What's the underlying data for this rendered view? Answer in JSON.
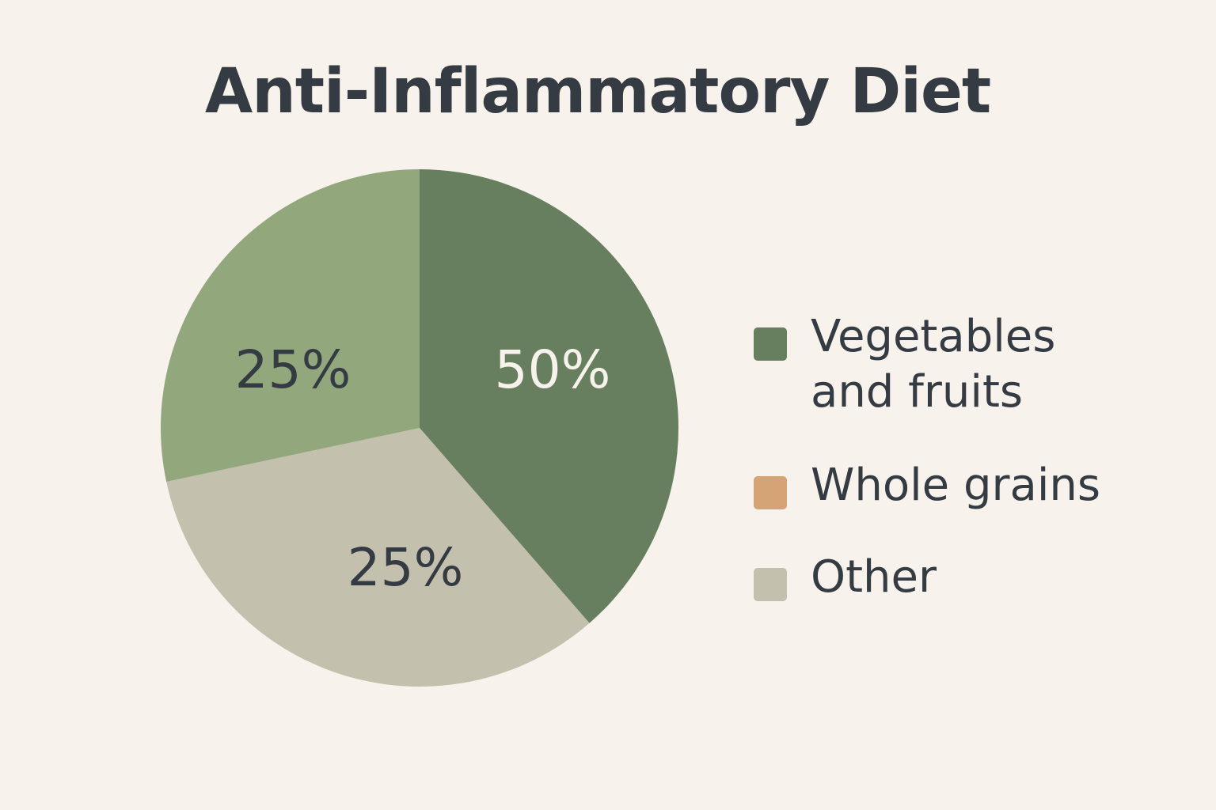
{
  "chart_data": {
    "type": "pie",
    "title": "Anti-Inflammatory Diet",
    "slices": [
      {
        "name": "Vegetables and fruits",
        "legend_lines": [
          "Vegetables",
          "and fruits"
        ],
        "value": 50,
        "label": "50%",
        "color": "#677f5f",
        "label_color": "#f7f3ec"
      },
      {
        "name": "Other",
        "value": 25,
        "label": "25%",
        "color": "#c4c0ae",
        "label_color": "#353b42"
      },
      {
        "name": "",
        "value": 25,
        "label": "25%",
        "color": "#93a77d",
        "label_color": "#353b42"
      }
    ],
    "legend": {
      "placement": "right",
      "items": [
        {
          "lines": [
            "Vegetables",
            "and fruits"
          ],
          "color": "#677f5f"
        },
        {
          "lines": [
            "Whole grains"
          ],
          "color": "#d4a474"
        },
        {
          "lines": [
            "Other"
          ],
          "color": "#c4c0ae"
        }
      ]
    }
  }
}
